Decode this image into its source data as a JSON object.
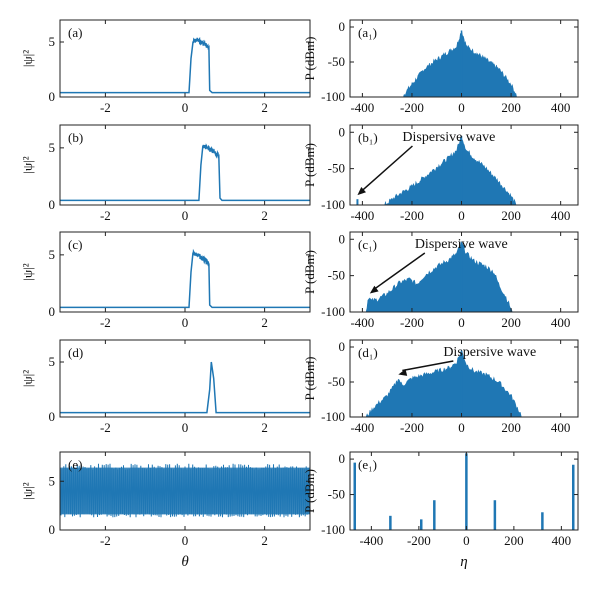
{
  "colors": {
    "series": "#1f77b4",
    "axis": "#222222",
    "annotation": "#111111"
  },
  "chart_data": [
    {
      "id": "a",
      "type": "line",
      "panel_label": "(a)",
      "ylabel": "|ψ|²",
      "xlabel": "",
      "xlim": [
        -3.14,
        3.14
      ],
      "ylim": [
        0,
        7
      ],
      "xticks": [
        -2,
        0,
        2
      ],
      "yticks": [
        0,
        5
      ],
      "xtick_labels": [
        "-2",
        "0",
        "2"
      ],
      "ytick_labels": [
        "0",
        "5"
      ],
      "series": [
        {
          "x": [
            -3.14,
            0.1,
            0.15,
            0.2,
            0.3,
            0.4,
            0.5,
            0.6,
            0.62,
            0.68,
            3.14
          ],
          "y": [
            0.4,
            0.4,
            3.5,
            5.0,
            5.2,
            5.0,
            4.8,
            4.5,
            0.6,
            0.4,
            0.4
          ]
        }
      ]
    },
    {
      "id": "a1",
      "type": "area",
      "panel_label": "(a₁)",
      "ylabel": "P (dBm)",
      "xlabel": "",
      "xlim": [
        -450,
        470
      ],
      "ylim": [
        -100,
        10
      ],
      "xticks": [
        -400,
        -200,
        0,
        200,
        400
      ],
      "yticks": [
        0,
        -50,
        -100
      ],
      "xtick_labels": [
        "-400",
        "-200",
        "0",
        "200",
        "400"
      ],
      "ytick_labels": [
        "0",
        "-50",
        "-100"
      ],
      "series": [
        {
          "x": [
            -240,
            -200,
            -150,
            -100,
            -50,
            -20,
            0,
            20,
            50,
            100,
            150,
            200,
            225
          ],
          "y": [
            -100,
            -82,
            -60,
            -47,
            -35,
            -28,
            -5,
            -28,
            -35,
            -47,
            -60,
            -82,
            -100
          ]
        }
      ]
    },
    {
      "id": "b",
      "type": "line",
      "panel_label": "(b)",
      "ylabel": "|ψ|²",
      "xlabel": "",
      "xlim": [
        -3.14,
        3.14
      ],
      "ylim": [
        0,
        7
      ],
      "xticks": [
        -2,
        0,
        2
      ],
      "yticks": [
        0,
        5
      ],
      "xtick_labels": [
        "-2",
        "0",
        "2"
      ],
      "ytick_labels": [
        "0",
        "5"
      ],
      "series": [
        {
          "x": [
            -3.14,
            0.35,
            0.4,
            0.45,
            0.55,
            0.65,
            0.75,
            0.85,
            0.88,
            0.93,
            3.14
          ],
          "y": [
            0.4,
            0.4,
            3.5,
            5.2,
            5.0,
            4.8,
            4.6,
            4.3,
            0.6,
            0.4,
            0.4
          ]
        }
      ]
    },
    {
      "id": "b1",
      "type": "area",
      "panel_label": "(b₁)",
      "ylabel": "P (dBm)",
      "xlabel": "",
      "xlim": [
        -450,
        470
      ],
      "ylim": [
        -100,
        10
      ],
      "xticks": [
        -400,
        -200,
        0,
        200,
        400
      ],
      "yticks": [
        0,
        -50,
        -100
      ],
      "xtick_labels": [
        "-400",
        "-200",
        "0",
        "200",
        "400"
      ],
      "ytick_labels": [
        "0",
        "-50",
        "-100"
      ],
      "series": [
        {
          "x": [
            -310,
            -250,
            -200,
            -150,
            -100,
            -50,
            -20,
            0,
            20,
            50,
            100,
            150,
            200,
            220
          ],
          "y": [
            -100,
            -85,
            -75,
            -62,
            -48,
            -35,
            -25,
            -5,
            -25,
            -35,
            -50,
            -68,
            -88,
            -100
          ]
        }
      ],
      "spike": {
        "x": -420,
        "y": -92
      },
      "annotation": {
        "text": "Dispersive wave",
        "x": -420,
        "y": -92
      }
    },
    {
      "id": "c",
      "type": "line",
      "panel_label": "(c)",
      "ylabel": "|ψ|²",
      "xlabel": "",
      "xlim": [
        -3.14,
        3.14
      ],
      "ylim": [
        0,
        7
      ],
      "xticks": [
        -2,
        0,
        2
      ],
      "yticks": [
        0,
        5
      ],
      "xtick_labels": [
        "-2",
        "0",
        "2"
      ],
      "ytick_labels": [
        "0",
        "5"
      ],
      "series": [
        {
          "x": [
            -3.14,
            0.1,
            0.15,
            0.2,
            0.3,
            0.4,
            0.5,
            0.6,
            0.62,
            0.68,
            3.14
          ],
          "y": [
            0.4,
            0.4,
            3.5,
            5.2,
            5.0,
            4.8,
            4.5,
            4.2,
            0.6,
            0.4,
            0.4
          ]
        }
      ]
    },
    {
      "id": "c1",
      "type": "area",
      "panel_label": "(c₁)",
      "ylabel": "P (dBm)",
      "xlabel": "",
      "xlim": [
        -450,
        470
      ],
      "ylim": [
        -100,
        10
      ],
      "xticks": [
        -400,
        -200,
        0,
        200,
        400
      ],
      "yticks": [
        0,
        -50,
        -100
      ],
      "xtick_labels": [
        "-400",
        "-200",
        "0",
        "200",
        "400"
      ],
      "ytick_labels": [
        "0",
        "-50",
        "-100"
      ],
      "series": [
        {
          "x": [
            -385,
            -375,
            -365,
            -340,
            -300,
            -250,
            -210,
            -180,
            -150,
            -100,
            -50,
            -20,
            0,
            20,
            50,
            100,
            130,
            150,
            180,
            205
          ],
          "y": [
            -100,
            -78,
            -85,
            -83,
            -75,
            -60,
            -55,
            -62,
            -50,
            -38,
            -28,
            -20,
            -5,
            -20,
            -30,
            -38,
            -45,
            -62,
            -80,
            -100
          ]
        }
      ],
      "annotation": {
        "text": "Dispersive wave",
        "x": -370,
        "y": -80
      }
    },
    {
      "id": "d",
      "type": "line",
      "panel_label": "(d)",
      "ylabel": "|ψ|²",
      "xlabel": "",
      "xlim": [
        -3.14,
        3.14
      ],
      "ylim": [
        0,
        7
      ],
      "xticks": [
        -2,
        0,
        2
      ],
      "yticks": [
        0,
        5
      ],
      "xtick_labels": [
        "-2",
        "0",
        "2"
      ],
      "ytick_labels": [
        "0",
        "5"
      ],
      "series": [
        {
          "x": [
            -3.14,
            0.55,
            0.62,
            0.66,
            0.72,
            0.78,
            3.14
          ],
          "y": [
            0.4,
            0.4,
            2.5,
            5.0,
            3.5,
            0.4,
            0.4
          ]
        }
      ]
    },
    {
      "id": "d1",
      "type": "area",
      "panel_label": "(d₁)",
      "ylabel": "P (dBm)",
      "xlabel": "",
      "xlim": [
        -450,
        470
      ],
      "ylim": [
        -100,
        10
      ],
      "xticks": [
        -400,
        -200,
        0,
        200,
        400
      ],
      "yticks": [
        0,
        -50,
        -100
      ],
      "xtick_labels": [
        "-400",
        "-200",
        "0",
        "200",
        "400"
      ],
      "ytick_labels": [
        "0",
        "-50",
        "-100"
      ],
      "series": [
        {
          "x": [
            -385,
            -350,
            -300,
            -270,
            -255,
            -240,
            -200,
            -150,
            -100,
            -50,
            -20,
            0,
            20,
            50,
            100,
            150,
            200,
            245
          ],
          "y": [
            -100,
            -85,
            -70,
            -55,
            -45,
            -55,
            -45,
            -40,
            -35,
            -30,
            -22,
            -5,
            -25,
            -35,
            -40,
            -50,
            -70,
            -100
          ]
        }
      ],
      "annotation": {
        "text": "Dispersive wave",
        "x": -255,
        "y": -45
      }
    },
    {
      "id": "e",
      "type": "area",
      "panel_label": "(e)",
      "ylabel": "|ψ|²",
      "xlabel": "θ",
      "xlim": [
        -3.14,
        3.14
      ],
      "ylim": [
        0,
        8
      ],
      "xticks": [
        -2,
        0,
        2
      ],
      "yticks": [
        0,
        5
      ],
      "xtick_labels": [
        "-2",
        "0",
        "2"
      ],
      "ytick_labels": [
        "0",
        "5"
      ],
      "band": {
        "low": 1.3,
        "high": 6.8
      }
    },
    {
      "id": "e1",
      "type": "bar",
      "panel_label": "(e₁)",
      "ylabel": "P (dBm)",
      "xlabel": "η",
      "xlim": [
        -490,
        470
      ],
      "ylim": [
        -100,
        10
      ],
      "xticks": [
        -400,
        -200,
        0,
        200,
        400
      ],
      "yticks": [
        0,
        -50,
        -100
      ],
      "xtick_labels": [
        "-400",
        "-200",
        "0",
        "200",
        "400"
      ],
      "ytick_labels": [
        "0",
        "-50",
        "-100"
      ],
      "x": [
        -470,
        -320,
        -190,
        -135,
        0,
        120,
        320,
        450
      ],
      "values": [
        -5,
        -80,
        -85,
        -58,
        8,
        -58,
        -75,
        -8
      ]
    }
  ]
}
